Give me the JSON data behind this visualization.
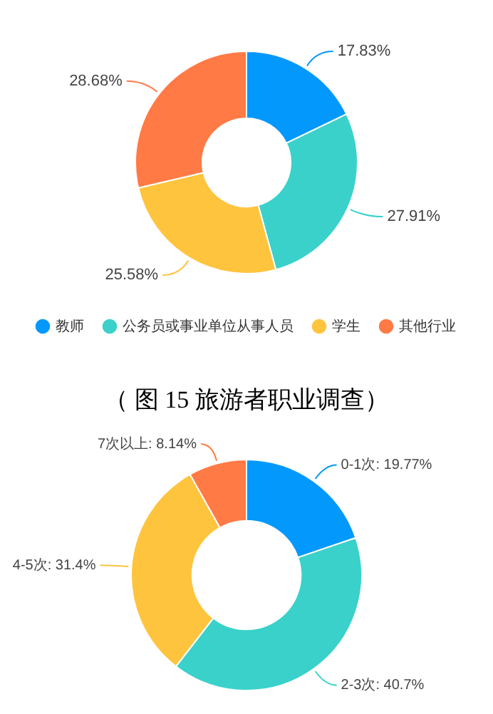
{
  "chart_data": [
    {
      "type": "donut",
      "categories": [
        "教师",
        "公务员或事业单位从事人员",
        "学生",
        "其他行业"
      ],
      "values": [
        17.83,
        27.91,
        25.58,
        28.68
      ],
      "colors": [
        "#0398fc",
        "#3ad1cb",
        "#ffc43d",
        "#ff7a45"
      ],
      "value_labels": [
        "17.83%",
        "27.91%",
        "25.58%",
        "28.68%"
      ],
      "legend": "bottom",
      "annotations": [
        "（ 图 15  旅游者职业调查）"
      ]
    },
    {
      "type": "donut",
      "categories": [
        "0-1次",
        "2-3次",
        "4-5次",
        "7次以上"
      ],
      "values": [
        19.77,
        40.7,
        31.4,
        8.14
      ],
      "colors": [
        "#0398fc",
        "#3ad1cb",
        "#ffc43d",
        "#ff7a45"
      ],
      "value_labels": [
        "19.77%",
        "40.7%",
        "31.4%",
        "8.14%"
      ]
    }
  ]
}
